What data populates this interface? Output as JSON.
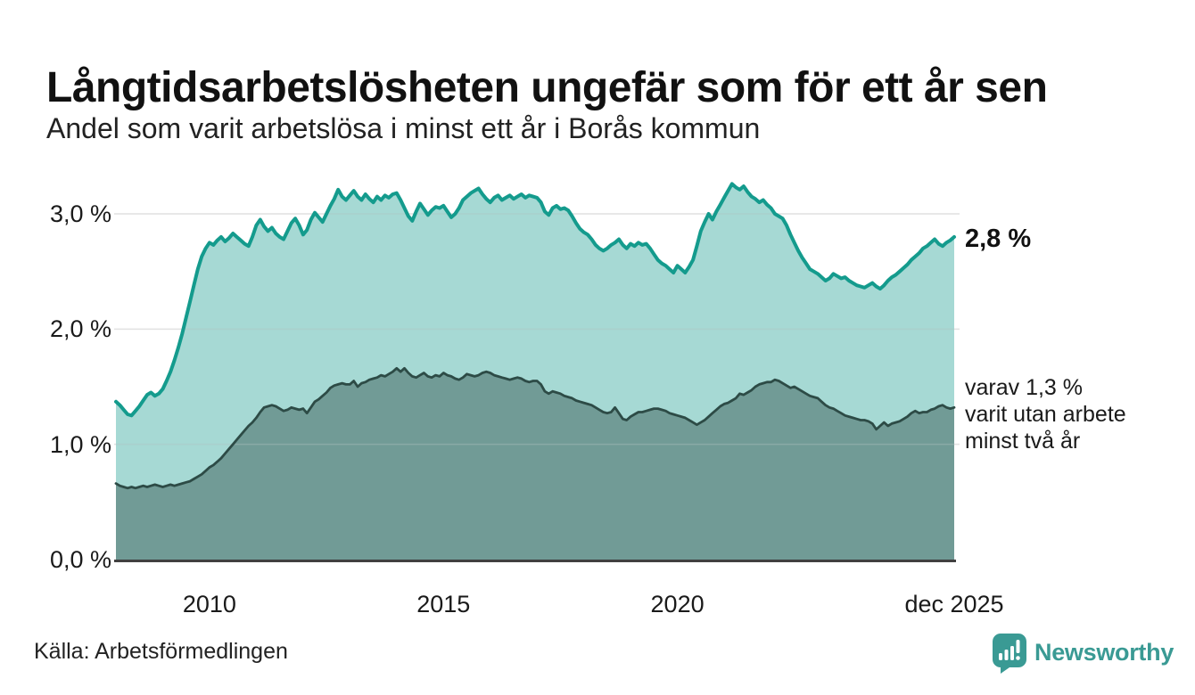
{
  "header": {
    "title": "Långtidsarbetslösheten ungefär som för ett år sen",
    "subtitle": "Andel som varit arbetslösa i minst ett år i Borås kommun"
  },
  "annotations": {
    "latest_value": "2,8 %",
    "secondary_line1": "varav 1,3 %",
    "secondary_line2": "varit utan arbete",
    "secondary_line3": "minst två år"
  },
  "footer": {
    "source": "Källa: Arbetsförmedlingen",
    "brand_name": "Newsworthy"
  },
  "colors": {
    "line_primary": "#149b8d",
    "fill_primary": "rgba(20,155,141,0.38)",
    "line_secondary": "#2d4b46",
    "fill_secondary": "rgba(45,75,70,0.43)",
    "grid": "#d9d9d9",
    "grid_overlay": "rgba(255,255,255,0.25)",
    "axis": "#404040",
    "brand_teal": "#3a9a94",
    "text": "#1a1a1a"
  },
  "chart_data": {
    "type": "area",
    "title": "Långtidsarbetslösheten ungefär som för ett år sen",
    "subtitle": "Andel som varit arbetslösa i minst ett år i Borås kommun",
    "unit": "%",
    "x_start": "2008-01",
    "x_end": "2025-12",
    "x_interval": "monthly",
    "ylim": [
      0,
      3.3
    ],
    "grid": true,
    "legend_position": "right-annotations",
    "y_ticks": [
      {
        "value": 0,
        "label": "0,0 %"
      },
      {
        "value": 1,
        "label": "1,0 %"
      },
      {
        "value": 2,
        "label": "2,0 %"
      },
      {
        "value": 3,
        "label": "3,0 %"
      }
    ],
    "x_ticks": [
      {
        "month_index": 24,
        "label": "2010"
      },
      {
        "month_index": 84,
        "label": "2015"
      },
      {
        "month_index": 144,
        "label": "2020"
      },
      {
        "month_index": 215,
        "label": "dec 2025"
      }
    ],
    "series": [
      {
        "name": "Andel arbetslösa minst ett år",
        "end_label": "2,8 %",
        "end_value": 2.8,
        "values": [
          1.37,
          1.34,
          1.3,
          1.26,
          1.25,
          1.29,
          1.33,
          1.38,
          1.43,
          1.45,
          1.42,
          1.44,
          1.48,
          1.55,
          1.63,
          1.73,
          1.84,
          1.96,
          2.1,
          2.24,
          2.38,
          2.52,
          2.63,
          2.7,
          2.75,
          2.73,
          2.77,
          2.8,
          2.76,
          2.79,
          2.83,
          2.8,
          2.77,
          2.74,
          2.72,
          2.8,
          2.9,
          2.95,
          2.89,
          2.85,
          2.88,
          2.83,
          2.8,
          2.78,
          2.85,
          2.92,
          2.96,
          2.9,
          2.82,
          2.86,
          2.95,
          3.01,
          2.97,
          2.93,
          3.0,
          3.07,
          3.13,
          3.21,
          3.15,
          3.12,
          3.16,
          3.2,
          3.15,
          3.12,
          3.17,
          3.13,
          3.1,
          3.15,
          3.12,
          3.16,
          3.14,
          3.17,
          3.18,
          3.12,
          3.05,
          2.98,
          2.94,
          3.02,
          3.09,
          3.04,
          2.99,
          3.03,
          3.06,
          3.05,
          3.07,
          3.02,
          2.97,
          3.0,
          3.05,
          3.12,
          3.15,
          3.18,
          3.2,
          3.22,
          3.17,
          3.13,
          3.1,
          3.14,
          3.16,
          3.12,
          3.14,
          3.16,
          3.13,
          3.15,
          3.17,
          3.14,
          3.16,
          3.15,
          3.14,
          3.1,
          3.02,
          2.99,
          3.05,
          3.07,
          3.04,
          3.05,
          3.03,
          2.98,
          2.92,
          2.87,
          2.84,
          2.82,
          2.78,
          2.73,
          2.7,
          2.68,
          2.7,
          2.73,
          2.75,
          2.78,
          2.73,
          2.7,
          2.74,
          2.72,
          2.75,
          2.73,
          2.74,
          2.7,
          2.65,
          2.6,
          2.57,
          2.55,
          2.52,
          2.49,
          2.55,
          2.52,
          2.49,
          2.54,
          2.6,
          2.72,
          2.85,
          2.93,
          3.0,
          2.95,
          3.02,
          3.08,
          3.14,
          3.2,
          3.26,
          3.23,
          3.21,
          3.24,
          3.19,
          3.15,
          3.13,
          3.1,
          3.12,
          3.08,
          3.05,
          3.0,
          2.98,
          2.96,
          2.9,
          2.82,
          2.75,
          2.68,
          2.62,
          2.57,
          2.52,
          2.5,
          2.48,
          2.45,
          2.42,
          2.44,
          2.48,
          2.46,
          2.44,
          2.45,
          2.42,
          2.4,
          2.38,
          2.37,
          2.36,
          2.38,
          2.4,
          2.37,
          2.35,
          2.38,
          2.42,
          2.45,
          2.47,
          2.5,
          2.53,
          2.56,
          2.6,
          2.63,
          2.66,
          2.7,
          2.72,
          2.75,
          2.78,
          2.74,
          2.72,
          2.75,
          2.77,
          2.8
        ]
      },
      {
        "name": "varav arbetslösa minst två år",
        "end_label": "varav 1,3 % varit utan arbete minst två år",
        "end_value": 1.3,
        "values": [
          0.66,
          0.64,
          0.63,
          0.62,
          0.63,
          0.62,
          0.63,
          0.64,
          0.63,
          0.64,
          0.65,
          0.64,
          0.63,
          0.64,
          0.65,
          0.64,
          0.65,
          0.66,
          0.67,
          0.68,
          0.7,
          0.72,
          0.74,
          0.77,
          0.8,
          0.82,
          0.85,
          0.88,
          0.92,
          0.96,
          1.0,
          1.04,
          1.08,
          1.12,
          1.16,
          1.19,
          1.23,
          1.28,
          1.32,
          1.33,
          1.34,
          1.33,
          1.31,
          1.29,
          1.3,
          1.32,
          1.31,
          1.3,
          1.31,
          1.27,
          1.32,
          1.37,
          1.39,
          1.42,
          1.45,
          1.49,
          1.51,
          1.52,
          1.53,
          1.52,
          1.52,
          1.55,
          1.5,
          1.53,
          1.54,
          1.56,
          1.57,
          1.58,
          1.6,
          1.59,
          1.61,
          1.63,
          1.66,
          1.63,
          1.66,
          1.62,
          1.59,
          1.58,
          1.6,
          1.62,
          1.59,
          1.58,
          1.6,
          1.59,
          1.62,
          1.6,
          1.59,
          1.57,
          1.56,
          1.58,
          1.61,
          1.6,
          1.59,
          1.6,
          1.62,
          1.63,
          1.62,
          1.6,
          1.59,
          1.58,
          1.57,
          1.56,
          1.57,
          1.58,
          1.57,
          1.55,
          1.54,
          1.55,
          1.55,
          1.52,
          1.46,
          1.44,
          1.46,
          1.45,
          1.44,
          1.42,
          1.41,
          1.4,
          1.38,
          1.37,
          1.36,
          1.35,
          1.34,
          1.32,
          1.3,
          1.28,
          1.27,
          1.28,
          1.32,
          1.27,
          1.22,
          1.21,
          1.24,
          1.26,
          1.28,
          1.28,
          1.29,
          1.3,
          1.31,
          1.31,
          1.3,
          1.29,
          1.27,
          1.26,
          1.25,
          1.24,
          1.23,
          1.21,
          1.19,
          1.17,
          1.19,
          1.21,
          1.24,
          1.27,
          1.3,
          1.33,
          1.35,
          1.36,
          1.38,
          1.4,
          1.44,
          1.43,
          1.45,
          1.47,
          1.5,
          1.52,
          1.53,
          1.54,
          1.54,
          1.56,
          1.55,
          1.53,
          1.51,
          1.49,
          1.5,
          1.48,
          1.46,
          1.44,
          1.42,
          1.41,
          1.4,
          1.37,
          1.34,
          1.32,
          1.31,
          1.29,
          1.27,
          1.25,
          1.24,
          1.23,
          1.22,
          1.21,
          1.21,
          1.2,
          1.18,
          1.13,
          1.16,
          1.19,
          1.16,
          1.18,
          1.19,
          1.2,
          1.22,
          1.24,
          1.27,
          1.29,
          1.27,
          1.28,
          1.28,
          1.3,
          1.31,
          1.33,
          1.34,
          1.32,
          1.31,
          1.32
        ]
      }
    ]
  }
}
